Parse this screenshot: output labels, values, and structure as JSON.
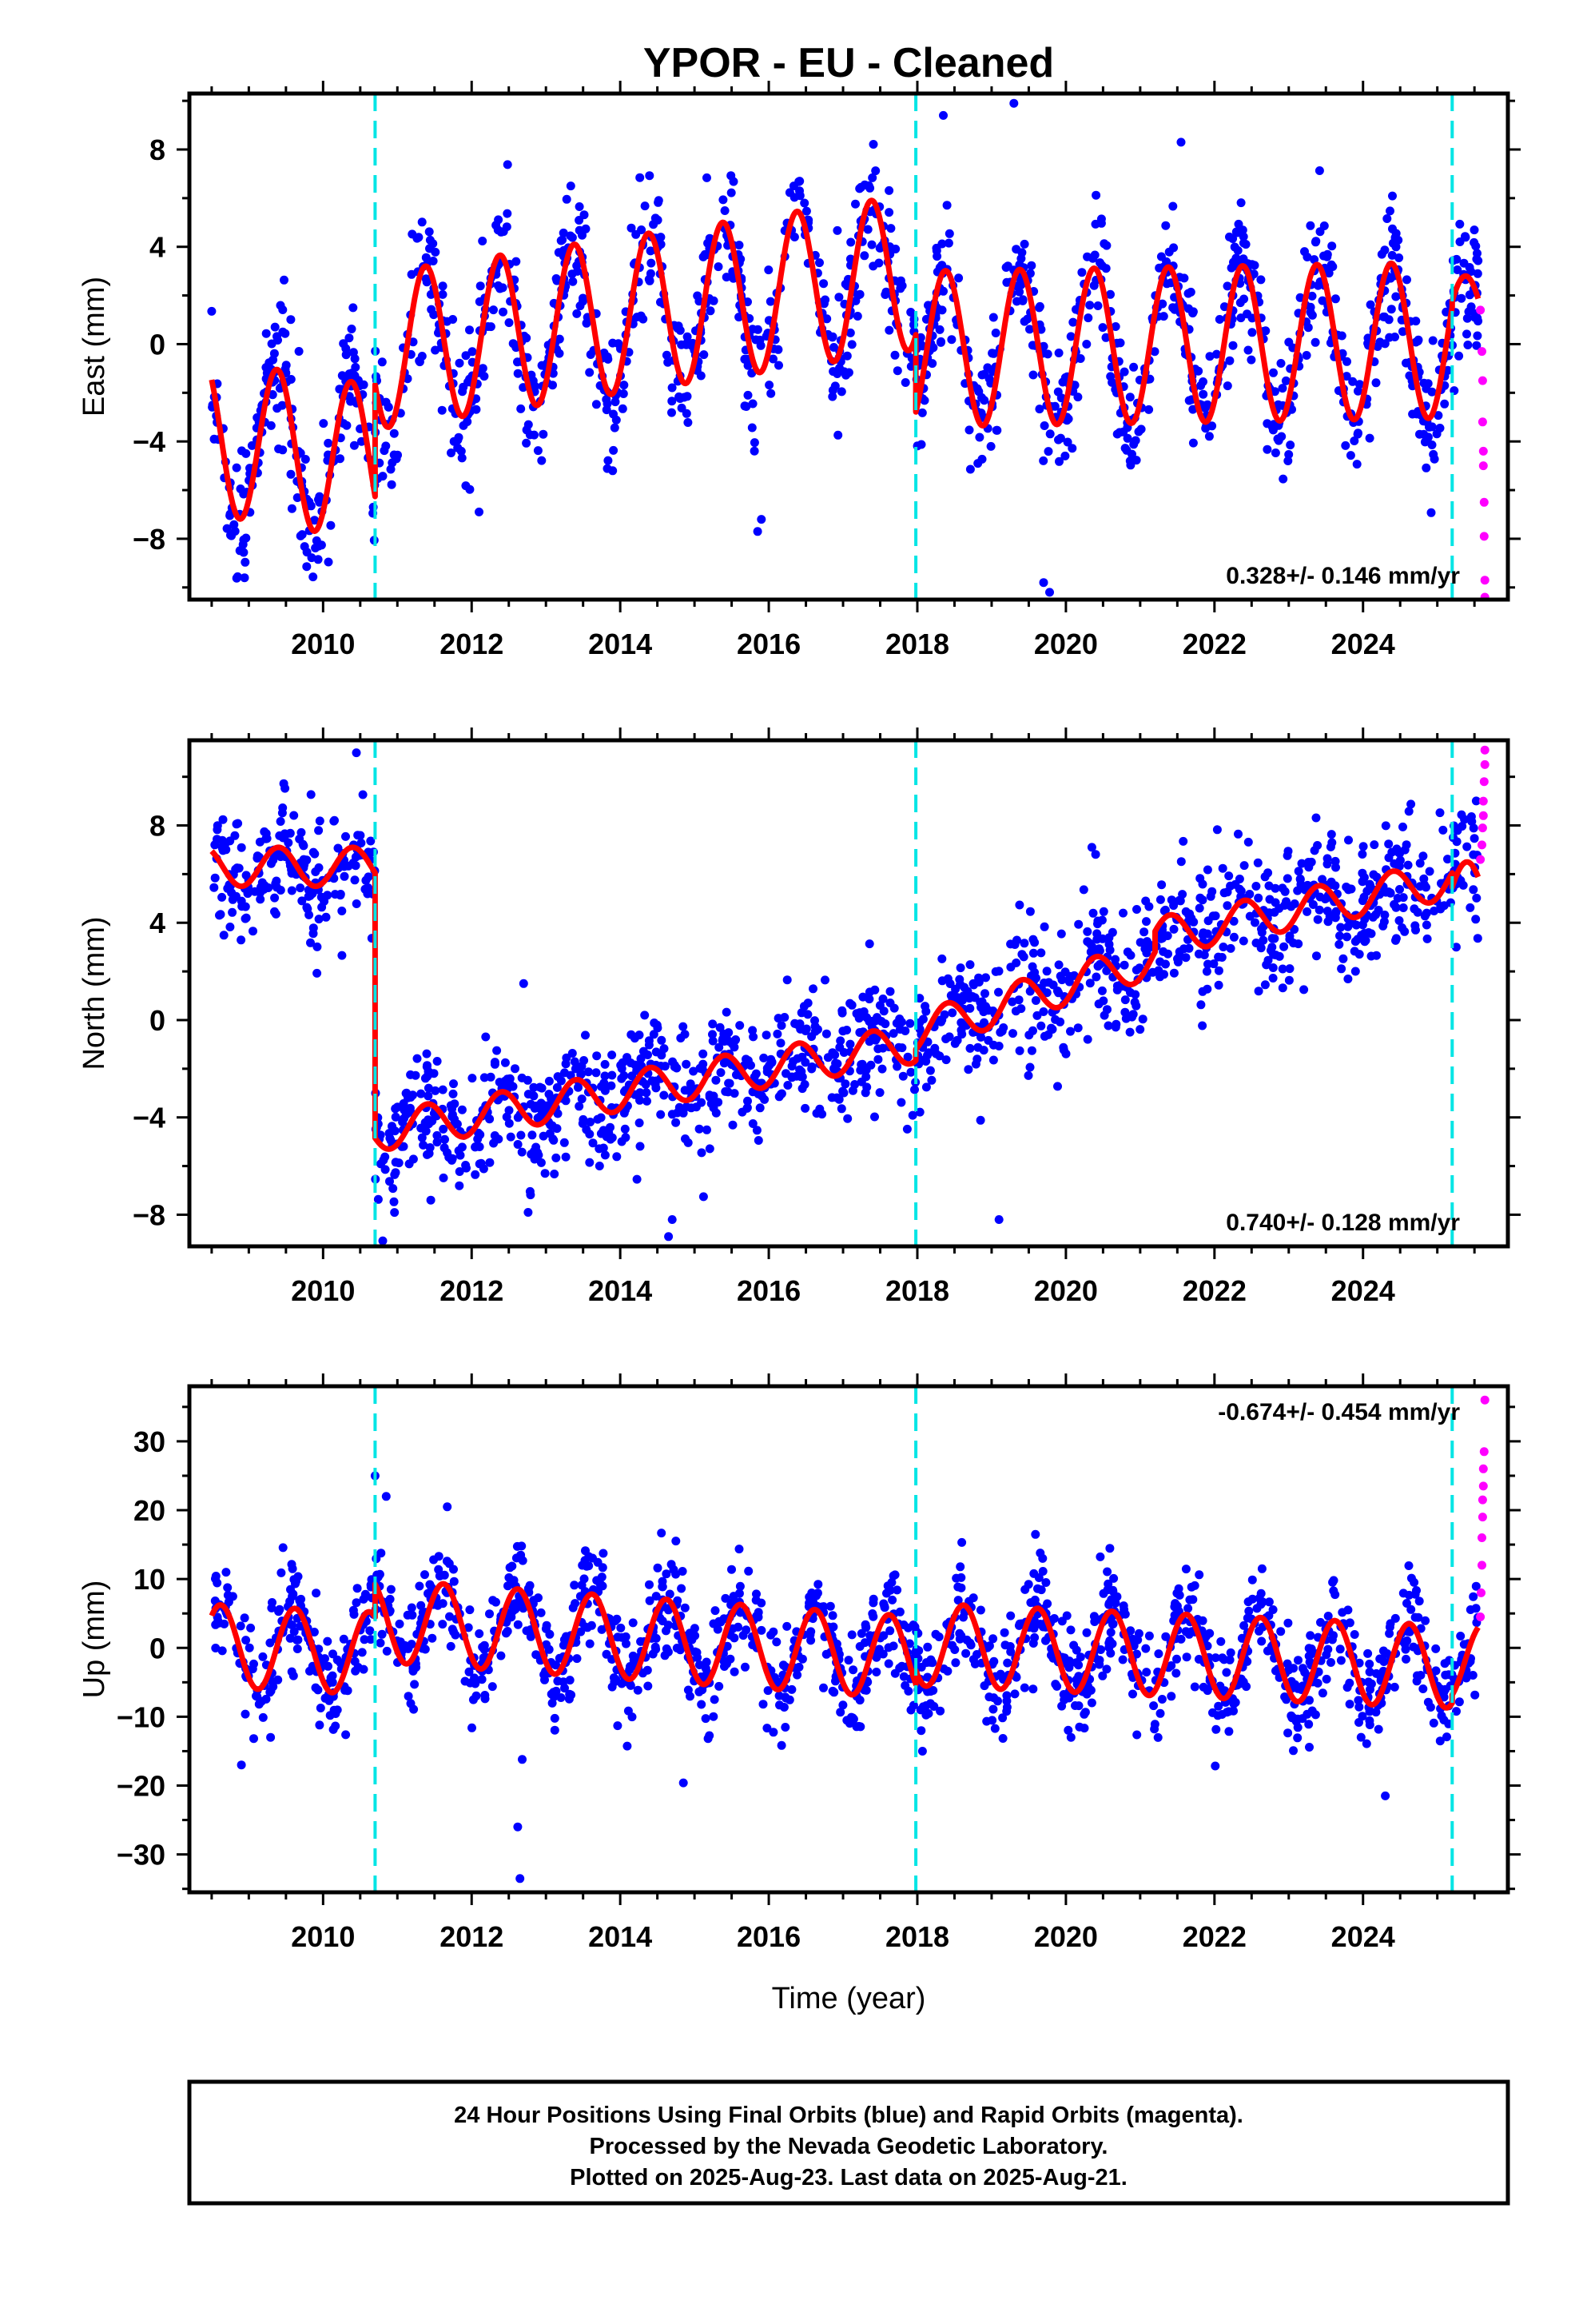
{
  "figure": {
    "title": "YPOR  - EU - Cleaned"
  },
  "colors": {
    "final_orbits": "#0000ff",
    "rapid_orbits": "#ff00ff",
    "model": "#ff0000",
    "event_lines": "#00e5e5",
    "frame": "#000000"
  },
  "chart_data": [
    {
      "type": "scatter",
      "panel": "east",
      "title": "",
      "xlabel": "",
      "ylabel": "East (mm)",
      "xlim": [
        2008.2,
        2025.95
      ],
      "ylim": [
        -10.5,
        10.3
      ],
      "x_ticks": [
        2010,
        2012,
        2014,
        2016,
        2018,
        2020,
        2022,
        2024
      ],
      "y_ticks": [
        -8,
        -4,
        0,
        4,
        8
      ],
      "event_lines_x": [
        2010.7,
        2017.98,
        2025.2
      ],
      "rate_text": "0.328+/- 0.146 mm/yr",
      "rate_position": "bottom-right",
      "model": {
        "name": "red fitted seasonal model",
        "segments": [
          {
            "x_start": 2008.5,
            "x_end": 2010.7,
            "offset": -3.8,
            "trend": -0.5,
            "amplitude": 3.2,
            "peak_phase": 0.38
          },
          {
            "x_start": 2010.7,
            "x_end": 2017.98,
            "offset": -0.3,
            "trend": 0.45,
            "amplitude": 3.2,
            "peak_phase": 0.38
          },
          {
            "x_start": 2017.98,
            "x_end": 2025.2,
            "offset": -0.2,
            "trend": 0.05,
            "amplitude": 3.2,
            "peak_phase": 0.38
          },
          {
            "x_start": 2025.2,
            "x_end": 2025.55,
            "offset": 1.0,
            "trend": 0.0,
            "amplitude": 1.8,
            "peak_phase": 0.38
          }
        ]
      },
      "series": [
        {
          "name": "Final Orbits (blue)",
          "scatter_model": {
            "x_start": 2008.5,
            "x_end": 2025.55,
            "spread": 1.4,
            "count": 1500,
            "seed": 11
          },
          "outliers": [
            {
              "x": 2019.3,
              "y": 9.9
            },
            {
              "x": 2018.35,
              "y": 9.4
            },
            {
              "x": 2019.7,
              "y": -9.8
            },
            {
              "x": 2019.78,
              "y": -10.2
            },
            {
              "x": 2015.85,
              "y": -7.7
            },
            {
              "x": 2015.9,
              "y": -7.2
            },
            {
              "x": 2012.1,
              "y": -6.9
            },
            {
              "x": 2021.55,
              "y": 8.3
            }
          ]
        },
        {
          "name": "Rapid Orbits (magenta)",
          "points": [
            {
              "x": 2025.58,
              "y": 1.4
            },
            {
              "x": 2025.6,
              "y": -0.3
            },
            {
              "x": 2025.61,
              "y": -1.5
            },
            {
              "x": 2025.61,
              "y": -3.2
            },
            {
              "x": 2025.62,
              "y": -4.4
            },
            {
              "x": 2025.62,
              "y": -5.0
            },
            {
              "x": 2025.63,
              "y": -6.5
            },
            {
              "x": 2025.63,
              "y": -7.9
            },
            {
              "x": 2025.64,
              "y": -9.7
            },
            {
              "x": 2025.64,
              "y": -10.4
            }
          ]
        }
      ]
    },
    {
      "type": "scatter",
      "panel": "north",
      "title": "",
      "xlabel": "",
      "ylabel": "North (mm)",
      "xlim": [
        2008.2,
        2025.95
      ],
      "ylim": [
        -9.3,
        11.5
      ],
      "x_ticks": [
        2010,
        2012,
        2014,
        2016,
        2018,
        2020,
        2022,
        2024
      ],
      "y_ticks": [
        -8,
        -4,
        0,
        4,
        8
      ],
      "event_lines_x": [
        2010.7,
        2017.98,
        2025.2
      ],
      "rate_text": "0.740+/- 0.128 mm/yr",
      "rate_position": "bottom-right",
      "model": {
        "name": "red fitted seasonal model",
        "segments": [
          {
            "x_start": 2008.5,
            "x_end": 2010.7,
            "offset": 6.3,
            "trend": 0.0,
            "amplitude": 0.8,
            "peak_phase": 0.4
          },
          {
            "x_start": 2010.7,
            "x_end": 2017.98,
            "offset": -4.6,
            "trend": 0.5,
            "amplitude": 0.8,
            "peak_phase": 0.4
          },
          {
            "x_start": 2017.98,
            "x_end": 2021.2,
            "offset": -0.5,
            "trend": 0.95,
            "amplitude": 0.8,
            "peak_phase": 0.4
          },
          {
            "x_start": 2021.2,
            "x_end": 2025.2,
            "offset": 3.4,
            "trend": 0.6,
            "amplitude": 0.8,
            "peak_phase": 0.4
          },
          {
            "x_start": 2025.2,
            "x_end": 2025.55,
            "offset": 5.0,
            "trend": 0.0,
            "amplitude": 1.5,
            "peak_phase": 0.4
          }
        ]
      },
      "series": [
        {
          "name": "Final Orbits (blue)",
          "scatter_model": {
            "x_start": 2008.5,
            "x_end": 2025.55,
            "spread": 1.3,
            "count": 1500,
            "seed": 23
          },
          "outliers": [
            {
              "x": 2014.65,
              "y": -8.9
            },
            {
              "x": 2014.7,
              "y": -8.2
            },
            {
              "x": 2019.1,
              "y": -8.2
            },
            {
              "x": 2011.45,
              "y": -7.4
            },
            {
              "x": 2012.7,
              "y": 1.5
            },
            {
              "x": 2020.35,
              "y": 7.1
            }
          ]
        },
        {
          "name": "Rapid Orbits (magenta)",
          "points": [
            {
              "x": 2025.58,
              "y": 6.6
            },
            {
              "x": 2025.6,
              "y": 7.2
            },
            {
              "x": 2025.61,
              "y": 7.9
            },
            {
              "x": 2025.62,
              "y": 8.4
            },
            {
              "x": 2025.62,
              "y": 9.0
            },
            {
              "x": 2025.63,
              "y": 9.8
            },
            {
              "x": 2025.64,
              "y": 10.5
            },
            {
              "x": 2025.64,
              "y": 11.1
            }
          ]
        }
      ]
    },
    {
      "type": "scatter",
      "panel": "up",
      "title": "",
      "xlabel": "Time (year)",
      "ylabel": "Up (mm)",
      "xlim": [
        2008.2,
        2025.95
      ],
      "ylim": [
        -35.5,
        38.0
      ],
      "x_ticks": [
        2010,
        2012,
        2014,
        2016,
        2018,
        2020,
        2022,
        2024
      ],
      "y_ticks": [
        -30,
        -20,
        -10,
        0,
        10,
        20,
        30
      ],
      "event_lines_x": [
        2010.7,
        2017.98,
        2025.2
      ],
      "rate_text": "-0.674+/- 0.454 mm/yr",
      "rate_position": "top-right",
      "model": {
        "name": "red fitted seasonal model",
        "segments": [
          {
            "x_start": 2008.5,
            "x_end": 2010.7,
            "offset": 0.3,
            "trend": -0.5,
            "amplitude": 6.0,
            "peak_phase": 0.62
          },
          {
            "x_start": 2010.7,
            "x_end": 2017.98,
            "offset": 4.0,
            "trend": -0.75,
            "amplitude": 6.0,
            "peak_phase": 0.62
          },
          {
            "x_start": 2017.98,
            "x_end": 2025.2,
            "offset": 0.5,
            "trend": -0.45,
            "amplitude": 6.0,
            "peak_phase": 0.62
          },
          {
            "x_start": 2025.2,
            "x_end": 2025.55,
            "offset": -2.0,
            "trend": 0.0,
            "amplitude": 5.5,
            "peak_phase": 0.62
          }
        ]
      },
      "series": [
        {
          "name": "Final Orbits (blue)",
          "scatter_model": {
            "x_start": 2008.5,
            "x_end": 2025.55,
            "spread": 3.8,
            "count": 1500,
            "seed": 37
          },
          "outliers": [
            {
              "x": 2012.65,
              "y": -33.5
            },
            {
              "x": 2012.62,
              "y": -26.0
            },
            {
              "x": 2012.68,
              "y": -16.2
            },
            {
              "x": 2014.85,
              "y": -19.6
            },
            {
              "x": 2024.3,
              "y": -21.5
            },
            {
              "x": 2008.9,
              "y": -17.0
            },
            {
              "x": 2010.7,
              "y": 25.0
            },
            {
              "x": 2010.85,
              "y": 22.0
            }
          ]
        },
        {
          "name": "Rapid Orbits (magenta)",
          "points": [
            {
              "x": 2025.58,
              "y": 4.5
            },
            {
              "x": 2025.59,
              "y": 8.0
            },
            {
              "x": 2025.6,
              "y": 12.0
            },
            {
              "x": 2025.6,
              "y": 16.0
            },
            {
              "x": 2025.61,
              "y": 19.0
            },
            {
              "x": 2025.61,
              "y": 21.5
            },
            {
              "x": 2025.62,
              "y": 23.5
            },
            {
              "x": 2025.62,
              "y": 26.0
            },
            {
              "x": 2025.63,
              "y": 28.5
            },
            {
              "x": 2025.64,
              "y": 36.0
            }
          ]
        }
      ]
    }
  ],
  "footer": {
    "line1": "24 Hour Positions Using Final Orbits (blue) and Rapid Orbits (magenta).",
    "line2": "Processed by the Nevada Geodetic Laboratory.",
    "line3": "Plotted on 2025-Aug-23. Last data on 2025-Aug-21."
  }
}
